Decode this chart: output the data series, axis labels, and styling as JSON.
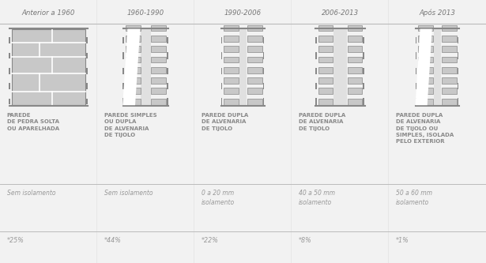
{
  "bg_color": "#f2f2f2",
  "panel_bg": "#f5f5f5",
  "border_color": "#bbbbbb",
  "text_color": "#999999",
  "dark_text": "#888888",
  "title_color": "#777777",
  "periods": [
    "Anterior a 1960",
    "1960-1990",
    "1990-2006",
    "2006-2013",
    "Após 2013"
  ],
  "descriptions": [
    "PAREDE\nDE PEDRA SOLTA\nOU APARELHADA",
    "PAREDE SIMPLES\nOU DUPLA\nDE ALVENARIA\nDE TIJOLO",
    "PAREDE DUPLA\nDE ALVENARIA\nDE TIJOLO",
    "PAREDE DUPLA\nDE ALVENARIA\nDE TIJOLO",
    "PAREDE DUPLA\nDE ALVENARIA\nDE TIJOLO OU\nSIMPLES, ISOLADA\nPELO EXTERIOR"
  ],
  "insulation": [
    "Sem isolamento",
    "Sem isolamento",
    "0 a 20 mm\nisolamento",
    "40 a 50 mm\nisolamento",
    "50 a 60 mm\nisolamento"
  ],
  "percentages": [
    "*25%",
    "*44%",
    "*22%",
    "*8%",
    "*1%"
  ],
  "wall_color": "#c8c8c8",
  "wall_dark": "#888888",
  "wall_border": "#999999",
  "gap_color": "#e0e0e0",
  "white": "#ffffff"
}
